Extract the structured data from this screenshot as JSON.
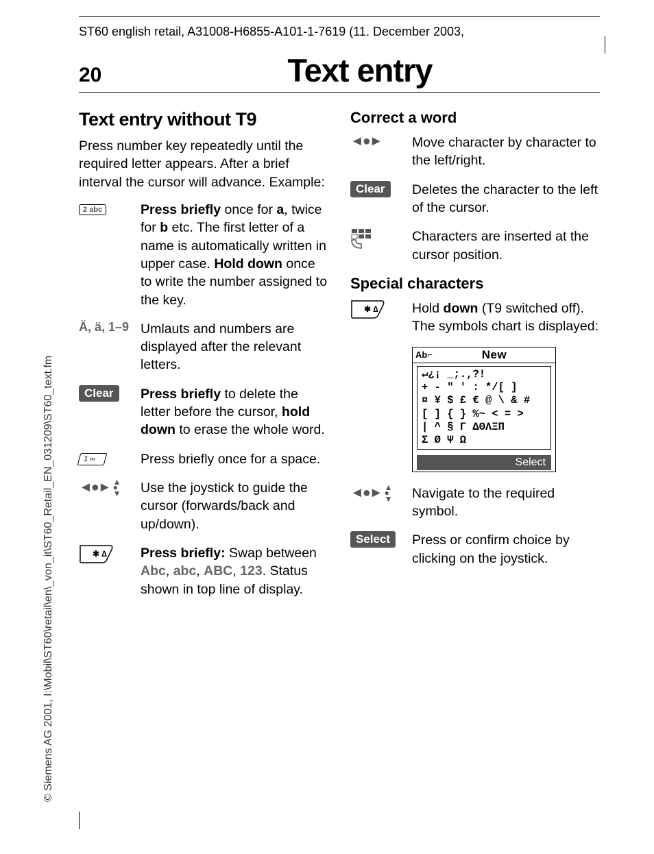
{
  "sidebar": "© Siemens AG 2001, I:\\Mobil\\ST60\\retail\\en\\_von_it\\ST60_Retail_EN_031209\\ST60_text.fm",
  "header_path": "ST60 english retail, A31008-H6855-A101-1-7619 (11. December 2003,",
  "page_number": "20",
  "page_title": "Text entry",
  "left": {
    "h2": "Text entry without T9",
    "intro": "Press number key repeatedly until the required letter appears. After a brief interval the cursor will advance. Example:",
    "rows": [
      {
        "icon_type": "key2abc",
        "label": "2 abc",
        "html": "<span class='bold'>Press briefly</span> once for <span class='bold'>a</span>, twice for <span class='bold'>b</span> etc. The first letter of a name is automatically written in upper case. <span class='bold'>Hold down</span> once to write the number assigned to the key."
      },
      {
        "icon_type": "text",
        "label": "Ä, ä, 1–9",
        "html": "Umlauts and numbers are displayed after the relevant letters."
      },
      {
        "icon_type": "clear",
        "label": "Clear",
        "html": "<span class='bold'>Press briefly</span> to delete the letter before the cursor, <span class='bold'>hold down</span> to erase the whole word."
      },
      {
        "icon_type": "key1",
        "label": "1 ∞",
        "html": "Press briefly once for a space."
      },
      {
        "icon_type": "joystick_full",
        "html": "Use the joystick to guide the cursor (forwards/back and up/down)."
      },
      {
        "icon_type": "keystar",
        "html": "<span class='bold'>Press briefly:</span> Swap between <span class='gray-bold'>Abc</span>, <span class='gray-bold'>abc</span>, <span class='gray-bold'>ABC</span>, <span class='gray-bold'>123</span>. Status shown in top line of display."
      }
    ]
  },
  "right": {
    "h3a": "Correct a word",
    "rows_a": [
      {
        "icon_type": "joy_lr",
        "html": "Move character by character to the left/right."
      },
      {
        "icon_type": "clear",
        "label": "Clear",
        "html": "Deletes the character to the left of the cursor."
      },
      {
        "icon_type": "hash",
        "html": "Characters are inserted at the cursor position."
      }
    ],
    "h3b": "Special characters",
    "rows_b_pre": {
      "icon_type": "keystar",
      "html": "Hold <span class='bold'>down</span> (T9 switched off). The symbols chart is displayed:"
    },
    "screen": {
      "mode": "Ab⌐",
      "title": "New",
      "symbols": "↵¿¡ _;.,?!\n+ - \" ' : */[ ]\n¤ ¥ $ £ € @ \\ & #\n[ ] { } %~ < = >\n| ^ § Γ ΔΘΛΞΠ\nΣ Ø Ψ Ω",
      "softkey": "Select"
    },
    "rows_b_post": [
      {
        "icon_type": "joystick_full",
        "html": "Navigate to the required symbol."
      },
      {
        "icon_type": "select",
        "label": "Select",
        "html": "Press or confirm choice by clicking on the joystick."
      }
    ]
  }
}
